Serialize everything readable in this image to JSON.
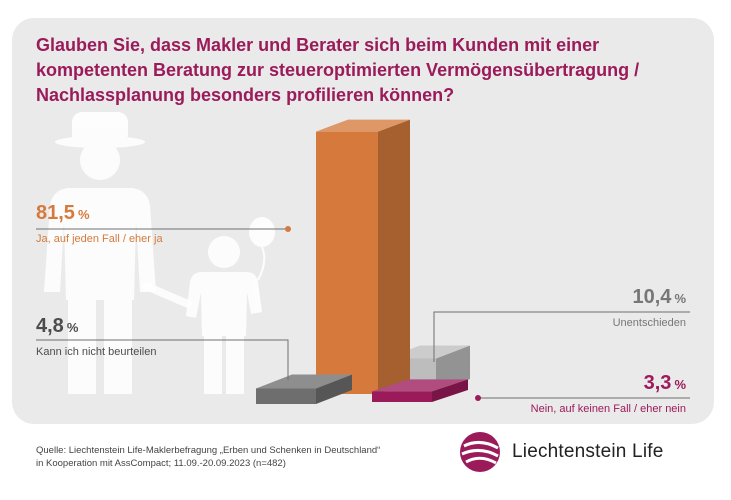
{
  "title": "Glauben Sie, dass Makler und Berater sich beim Kunden mit einer kompetenten Beratung zur steueroptimierten Vermögensübertragung / Nachlassplanung besonders profilieren können?",
  "chart_data": {
    "type": "bar",
    "unit": "%",
    "categories": [
      "Ja, auf jeden Fall / eher ja",
      "Unentschieden",
      "Kann ich nicht beurteilen",
      "Nein, auf keinen Fall / eher nein"
    ],
    "values": [
      81.5,
      10.4,
      4.8,
      3.3
    ],
    "value_labels": [
      "81,5",
      "10,4",
      "4,8",
      "3,3"
    ],
    "colors": [
      "#d57a3c",
      "#bdbdbd",
      "#6e6e6e",
      "#9b1b5a"
    ]
  },
  "labels": {
    "ja": {
      "value": "81,5",
      "unit": "%",
      "caption": "Ja, auf jeden Fall / eher ja"
    },
    "unentschieden": {
      "value": "10,4",
      "unit": "%",
      "caption": "Unentschieden"
    },
    "kann_nicht": {
      "value": "4,8",
      "unit": "%",
      "caption": "Kann ich nicht beurteilen"
    },
    "nein": {
      "value": "3,3",
      "unit": "%",
      "caption": "Nein, auf keinen Fall / eher nein"
    }
  },
  "source": {
    "line1": "Quelle: Liechtenstein Life-Maklerbefragung „Erben und Schenken in Deutschland“",
    "line2": "in Kooperation mit AssCompact; 11.09.-20.09.2023 (n=482)"
  },
  "brand": {
    "name": "Liechtenstein Life"
  }
}
